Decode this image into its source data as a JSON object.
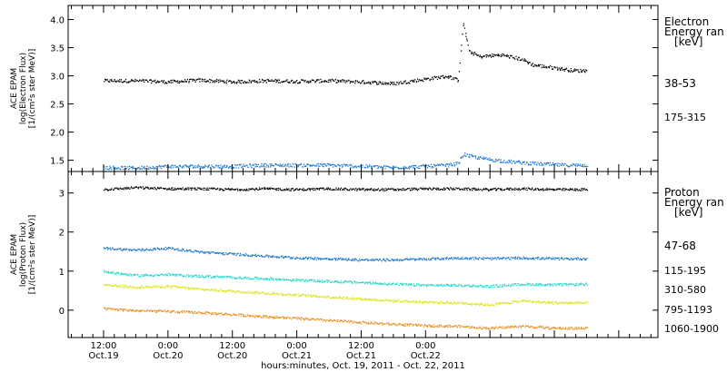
{
  "chart_data": [
    {
      "type": "scatter",
      "ylabel": [
        "ACE EPAM",
        "log(Electron Flux)",
        "[1/(cm²s ster MeV)]"
      ],
      "legend_title": [
        "Electron",
        "Energy ran",
        "[keV]"
      ],
      "ylim": [
        1.3,
        4.25
      ],
      "yticks": [
        "1.5",
        "2.0",
        "2.5",
        "3.0",
        "3.5",
        "4.0"
      ],
      "series": [
        {
          "name": "38-53",
          "color": "#000000",
          "x": [
            0,
            6,
            12,
            18,
            24,
            30,
            36,
            42,
            48,
            54,
            60,
            64,
            66,
            67,
            68,
            70,
            74,
            78,
            80,
            84,
            86,
            88,
            90
          ],
          "y": [
            2.92,
            2.92,
            2.9,
            2.93,
            2.9,
            2.92,
            2.91,
            2.92,
            2.9,
            2.87,
            2.95,
            3.0,
            2.93,
            3.95,
            3.45,
            3.35,
            3.38,
            3.3,
            3.2,
            3.15,
            3.12,
            3.1,
            3.1
          ]
        },
        {
          "name": "175-315",
          "color": "#1a78d2",
          "x": [
            0,
            6,
            12,
            18,
            24,
            30,
            36,
            42,
            48,
            54,
            60,
            64,
            66,
            67,
            68,
            72,
            76,
            80,
            86,
            90
          ],
          "y": [
            1.38,
            1.37,
            1.4,
            1.4,
            1.4,
            1.42,
            1.42,
            1.42,
            1.4,
            1.38,
            1.4,
            1.42,
            1.45,
            1.62,
            1.58,
            1.52,
            1.48,
            1.45,
            1.42,
            1.42
          ]
        }
      ]
    },
    {
      "type": "scatter",
      "ylabel": [
        "ACE EPAM",
        "log(Proton Flux)",
        "[1/(cm²s ster MeV)]"
      ],
      "legend_title": [
        "Proton",
        "Energy ran",
        "[keV]"
      ],
      "ylim": [
        -0.7,
        3.55
      ],
      "yticks": [
        "0",
        "1",
        "2",
        "3"
      ],
      "series": [
        {
          "name": "47-68",
          "color": "#000000",
          "x": [
            0,
            6,
            12,
            18,
            24,
            30,
            36,
            42,
            48,
            54,
            60,
            66,
            72,
            78,
            84,
            90
          ],
          "y": [
            3.1,
            3.15,
            3.12,
            3.12,
            3.1,
            3.12,
            3.1,
            3.12,
            3.1,
            3.1,
            3.12,
            3.12,
            3.1,
            3.12,
            3.1,
            3.1
          ]
        },
        {
          "name": "115-195",
          "color": "#1a78d2",
          "x": [
            0,
            6,
            12,
            18,
            24,
            30,
            36,
            42,
            48,
            54,
            60,
            66,
            72,
            78,
            84,
            90
          ],
          "y": [
            1.6,
            1.55,
            1.6,
            1.5,
            1.45,
            1.4,
            1.35,
            1.33,
            1.3,
            1.3,
            1.32,
            1.35,
            1.33,
            1.35,
            1.33,
            1.33
          ]
        },
        {
          "name": "310-580",
          "color": "#22d8cc",
          "x": [
            0,
            6,
            12,
            18,
            24,
            30,
            36,
            42,
            48,
            54,
            60,
            66,
            72,
            78,
            84,
            90
          ],
          "y": [
            1.0,
            0.9,
            0.92,
            0.88,
            0.85,
            0.82,
            0.78,
            0.75,
            0.72,
            0.68,
            0.65,
            0.65,
            0.62,
            0.68,
            0.66,
            0.68
          ]
        },
        {
          "name": "795-1193",
          "color": "#dde41a",
          "x": [
            0,
            6,
            12,
            18,
            24,
            30,
            36,
            42,
            48,
            54,
            60,
            66,
            72,
            78,
            84,
            90
          ],
          "y": [
            0.65,
            0.6,
            0.62,
            0.55,
            0.5,
            0.45,
            0.4,
            0.35,
            0.3,
            0.25,
            0.22,
            0.2,
            0.15,
            0.25,
            0.2,
            0.2
          ]
        },
        {
          "name": "1060-1900",
          "color": "#e8901e",
          "x": [
            0,
            6,
            12,
            18,
            24,
            30,
            36,
            42,
            48,
            54,
            60,
            66,
            72,
            78,
            84,
            90
          ],
          "y": [
            0.05,
            0.0,
            -0.02,
            -0.05,
            -0.1,
            -0.15,
            -0.2,
            -0.25,
            -0.3,
            -0.35,
            -0.38,
            -0.4,
            -0.45,
            -0.4,
            -0.45,
            -0.45
          ]
        }
      ]
    }
  ],
  "x_axis": {
    "label": "hours:minutes, Oct. 19, 2011 - Oct. 22, 2011",
    "range_hours": [
      -6.6,
      103.3
    ],
    "ticks": [
      {
        "hour": 0,
        "time": "12:00",
        "date": "Oct.19"
      },
      {
        "hour": 12,
        "time": "0:00",
        "date": "Oct.20"
      },
      {
        "hour": 24,
        "time": "12:00",
        "date": "Oct.20"
      },
      {
        "hour": 36,
        "time": "0:00",
        "date": "Oct.21"
      },
      {
        "hour": 48,
        "time": "12:00",
        "date": "Oct.21"
      },
      {
        "hour": 60,
        "time": "0:00",
        "date": "Oct.22"
      }
    ],
    "minor_every_hours": 2
  }
}
